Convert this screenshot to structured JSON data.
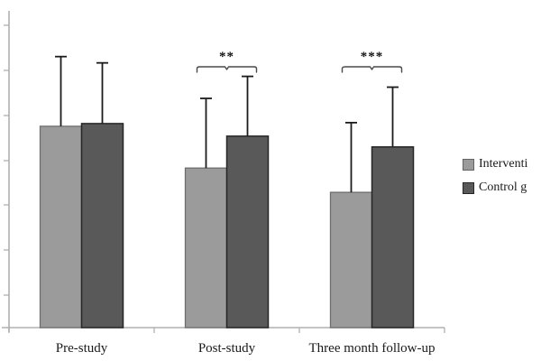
{
  "figure": {
    "background": "#ffffff",
    "axis_color": "#b0b0b0",
    "text_color": "#1a1a1a",
    "error_bar_color": "#1c1c1c",
    "bracket_color": "#4a4a4a"
  },
  "legend": {
    "items": [
      {
        "label": "Interventi",
        "color": "#9b9b9b",
        "border": "#636363"
      },
      {
        "label": "Control g",
        "color": "#595959",
        "border": "#262626"
      }
    ]
  },
  "chart_data": {
    "type": "bar",
    "title": "",
    "xlabel": "",
    "ylabel": "",
    "categories": [
      "Pre-study",
      "Post-study",
      "Three month follow-up"
    ],
    "series": [
      {
        "name": "Interventi",
        "fill": "#9b9b9b",
        "border": "#6e6e6e",
        "values": [
          4.48,
          3.55,
          3.01
        ],
        "errors_up": [
          1.55,
          1.55,
          1.55
        ]
      },
      {
        "name": "Control g",
        "fill": "#595959",
        "border": "#262626",
        "values": [
          4.54,
          4.26,
          4.02
        ],
        "errors_up": [
          1.35,
          1.33,
          1.33
        ]
      }
    ],
    "significance_brackets": [
      {
        "category_index": 1,
        "label": "**"
      },
      {
        "category_index": 2,
        "label": "***"
      }
    ],
    "y_axis": {
      "tick_labels_visible": false,
      "num_ticks": 7,
      "units_note": "axis labels cropped out of image; values estimated in gridline units (1 unit = one tick spacing), baseline = 0",
      "ylim": [
        0,
        7.05
      ]
    },
    "grid": false,
    "legend_position": "right"
  }
}
